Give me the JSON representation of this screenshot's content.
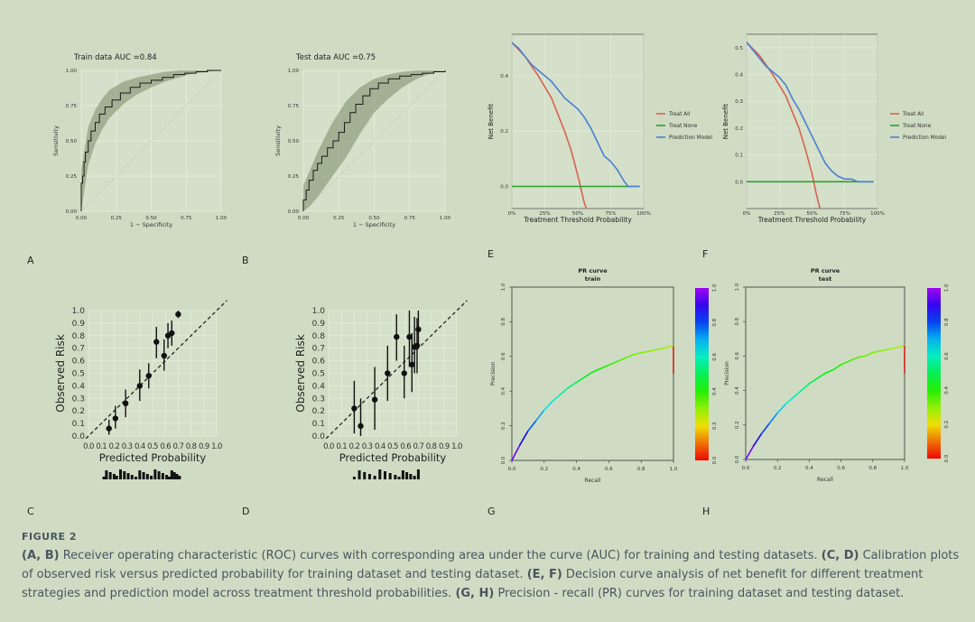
{
  "figure": {
    "background": "#cfdcc3",
    "panel_letters": [
      "A",
      "B",
      "C",
      "D",
      "E",
      "F",
      "G",
      "H"
    ]
  },
  "caption": {
    "label": "FIGURE 2",
    "segments": [
      {
        "text": "(A, B)",
        "bold": true
      },
      {
        "text": " Receiver operating characteristic (ROC) curves with corresponding area under the curve (AUC) for training and testing datasets. ",
        "bold": false
      },
      {
        "text": "(C, D)",
        "bold": true
      },
      {
        "text": " Calibration plots of observed risk versus predicted probability for training dataset and testing dataset. ",
        "bold": false
      },
      {
        "text": "(E, F)",
        "bold": true
      },
      {
        "text": " Decision curve analysis of net benefit for different treatment strategies and prediction model across treatment threshold probabilities. ",
        "bold": false
      },
      {
        "text": "(G, H)",
        "bold": true
      },
      {
        "text": " Precision - recall (PR) curves for training dataset and testing dataset.",
        "bold": false
      }
    ]
  },
  "chart_data": [
    {
      "id": "A",
      "type": "line",
      "title": "Train data  AUC =0.84",
      "xlabel": "1 − Specificity",
      "ylabel": "Sensitivity",
      "xlim": [
        0,
        1
      ],
      "ylim": [
        0,
        1
      ],
      "xticks": [
        "0.00",
        "0.25",
        "0.50",
        "0.75",
        "1.00"
      ],
      "yticks": [
        "0.00",
        "0.25",
        "0.50",
        "0.75",
        "1.00"
      ],
      "series": [
        {
          "name": "ROC",
          "color": "#1a1a1a",
          "x": [
            0,
            0,
            0.01,
            0.02,
            0.03,
            0.05,
            0.07,
            0.1,
            0.13,
            0.17,
            0.22,
            0.28,
            0.35,
            0.42,
            0.5,
            0.58,
            0.66,
            0.74,
            0.82,
            0.9,
            1.0
          ],
          "y": [
            0,
            0.2,
            0.25,
            0.35,
            0.42,
            0.5,
            0.57,
            0.63,
            0.69,
            0.74,
            0.79,
            0.84,
            0.88,
            0.91,
            0.93,
            0.95,
            0.97,
            0.98,
            0.99,
            1.0,
            1.0
          ]
        }
      ],
      "band": {
        "x": [
          0,
          0.05,
          0.1,
          0.15,
          0.2,
          0.3,
          0.4,
          0.5,
          0.6,
          0.7,
          0.8,
          0.9,
          1.0
        ],
        "lower": [
          0,
          0.33,
          0.48,
          0.58,
          0.66,
          0.76,
          0.83,
          0.88,
          0.92,
          0.95,
          0.98,
          0.99,
          1.0
        ],
        "upper": [
          0.3,
          0.6,
          0.72,
          0.8,
          0.86,
          0.92,
          0.95,
          0.97,
          0.99,
          1.0,
          1.0,
          1.0,
          1.0
        ]
      }
    },
    {
      "id": "B",
      "type": "line",
      "title": "Test data  AUC =0.75",
      "xlabel": "1 − Specificity",
      "ylabel": "Sensitivity",
      "xlim": [
        0,
        1
      ],
      "ylim": [
        0,
        1
      ],
      "xticks": [
        "0.00",
        "0.25",
        "0.50",
        "0.75",
        "1.00"
      ],
      "yticks": [
        "0.00",
        "0.25",
        "0.50",
        "0.75",
        "1.00"
      ],
      "series": [
        {
          "name": "ROC",
          "color": "#1a1a1a",
          "x": [
            0,
            0,
            0.02,
            0.04,
            0.07,
            0.1,
            0.13,
            0.17,
            0.21,
            0.25,
            0.29,
            0.33,
            0.37,
            0.42,
            0.47,
            0.53,
            0.6,
            0.68,
            0.76,
            0.84,
            0.92,
            1.0
          ],
          "y": [
            0,
            0.08,
            0.15,
            0.22,
            0.29,
            0.34,
            0.39,
            0.45,
            0.5,
            0.56,
            0.63,
            0.7,
            0.76,
            0.82,
            0.87,
            0.91,
            0.94,
            0.96,
            0.97,
            0.98,
            0.99,
            1.0
          ]
        }
      ],
      "band": {
        "x": [
          0,
          0.05,
          0.1,
          0.15,
          0.2,
          0.3,
          0.4,
          0.5,
          0.6,
          0.7,
          0.8,
          0.9,
          1.0
        ],
        "lower": [
          0,
          0.04,
          0.1,
          0.17,
          0.24,
          0.38,
          0.55,
          0.7,
          0.8,
          0.88,
          0.94,
          0.98,
          1.0
        ],
        "upper": [
          0.18,
          0.3,
          0.42,
          0.52,
          0.62,
          0.78,
          0.88,
          0.94,
          0.97,
          0.99,
          1.0,
          1.0,
          1.0
        ]
      }
    },
    {
      "id": "C",
      "type": "scatter",
      "title": "",
      "xlabel": "Predicted Probability",
      "ylabel": "Observed Risk",
      "xlim": [
        0,
        1
      ],
      "ylim": [
        0,
        1
      ],
      "xticks": [
        "0.0",
        "0.1",
        "0.2",
        "0.3",
        "0.4",
        "0.5",
        "0.6",
        "0.7",
        "0.8",
        "0.9",
        "1.0"
      ],
      "yticks": [
        "0.0",
        "0.1",
        "0.2",
        "0.3",
        "0.4",
        "0.5",
        "0.6",
        "0.7",
        "0.8",
        "0.9",
        "1.0"
      ],
      "points": {
        "x": [
          0.16,
          0.21,
          0.29,
          0.4,
          0.47,
          0.53,
          0.59,
          0.62,
          0.65,
          0.7
        ],
        "y": [
          0.06,
          0.14,
          0.26,
          0.4,
          0.48,
          0.75,
          0.64,
          0.8,
          0.82,
          0.97
        ],
        "lo": [
          0.01,
          0.06,
          0.15,
          0.28,
          0.38,
          0.62,
          0.52,
          0.7,
          0.72,
          0.94
        ],
        "hi": [
          0.13,
          0.24,
          0.37,
          0.53,
          0.58,
          0.87,
          0.77,
          0.9,
          0.92,
          1.0
        ]
      },
      "rug": [
        0.12,
        0.14,
        0.17,
        0.2,
        0.22,
        0.25,
        0.28,
        0.31,
        0.34,
        0.37,
        0.4,
        0.43,
        0.46,
        0.49,
        0.52,
        0.55,
        0.58,
        0.61,
        0.63,
        0.65,
        0.67,
        0.69,
        0.71
      ]
    },
    {
      "id": "D",
      "type": "scatter",
      "title": "",
      "xlabel": "Predicted Probability",
      "ylabel": "Observed Risk",
      "xlim": [
        0,
        1
      ],
      "ylim": [
        0,
        1
      ],
      "xticks": [
        "0.0",
        "0.1",
        "0.2",
        "0.3",
        "0.4",
        "0.5",
        "0.6",
        "0.7",
        "0.8",
        "0.9",
        "1.0"
      ],
      "yticks": [
        "0.0",
        "0.1",
        "0.2",
        "0.3",
        "0.4",
        "0.5",
        "0.6",
        "0.7",
        "0.8",
        "0.9",
        "1.0"
      ],
      "points": {
        "x": [
          0.2,
          0.25,
          0.36,
          0.46,
          0.53,
          0.59,
          0.63,
          0.65,
          0.67,
          0.69,
          0.7
        ],
        "y": [
          0.22,
          0.08,
          0.29,
          0.5,
          0.79,
          0.5,
          0.79,
          0.57,
          0.71,
          0.72,
          0.85
        ],
        "lo": [
          0.02,
          0.0,
          0.05,
          0.28,
          0.6,
          0.3,
          0.55,
          0.35,
          0.5,
          0.5,
          0.7
        ],
        "hi": [
          0.44,
          0.3,
          0.55,
          0.72,
          0.97,
          0.72,
          1.0,
          0.82,
          0.95,
          0.94,
          1.0
        ]
      },
      "rug": [
        0.2,
        0.24,
        0.28,
        0.32,
        0.36,
        0.4,
        0.44,
        0.48,
        0.52,
        0.55,
        0.58,
        0.61,
        0.64,
        0.67,
        0.7
      ]
    },
    {
      "id": "E",
      "type": "line",
      "title": "",
      "xlabel": "Treatment Threshold Probability",
      "ylabel": "Net Benefit",
      "xlim": [
        0,
        1
      ],
      "ylim": [
        -0.08,
        0.55
      ],
      "xticks": [
        "0%",
        "25%",
        "50%",
        "75%",
        "100%"
      ],
      "yticks": [
        "0.0",
        "0.2",
        "0.4"
      ],
      "legend": {
        "position": "right",
        "entries": [
          "Treat All",
          "Treat None",
          "Prediction Model"
        ]
      },
      "series": [
        {
          "name": "Treat All",
          "color": "#d9614f",
          "x": [
            0,
            0.1,
            0.2,
            0.3,
            0.4,
            0.45,
            0.5,
            0.55,
            0.58
          ],
          "y": [
            0.52,
            0.47,
            0.4,
            0.32,
            0.2,
            0.13,
            0.04,
            -0.06,
            -0.1
          ]
        },
        {
          "name": "Treat None",
          "color": "#2ca02c",
          "x": [
            0,
            0.97
          ],
          "y": [
            0,
            0
          ]
        },
        {
          "name": "Prediction Model",
          "color": "#4a7fd4",
          "x": [
            0,
            0.05,
            0.1,
            0.15,
            0.2,
            0.25,
            0.3,
            0.35,
            0.4,
            0.45,
            0.5,
            0.55,
            0.6,
            0.65,
            0.7,
            0.75,
            0.8,
            0.85,
            0.88,
            0.9,
            0.95,
            0.97
          ],
          "y": [
            0.52,
            0.5,
            0.47,
            0.44,
            0.42,
            0.4,
            0.38,
            0.35,
            0.32,
            0.3,
            0.28,
            0.25,
            0.21,
            0.16,
            0.11,
            0.09,
            0.06,
            0.02,
            0.0,
            0.0,
            0.0,
            0.0
          ]
        }
      ]
    },
    {
      "id": "F",
      "type": "line",
      "title": "",
      "xlabel": "Treatment Threshold Probability",
      "ylabel": "Net Benefit",
      "xlim": [
        0,
        1
      ],
      "ylim": [
        -0.1,
        0.55
      ],
      "xticks": [
        "0%",
        "25%",
        "50%",
        "75%",
        "100%"
      ],
      "yticks": [
        "0.0",
        "0.1",
        "0.2",
        "0.3",
        "0.4",
        "0.5"
      ],
      "legend": {
        "position": "right",
        "entries": [
          "Treat All",
          "Treat None",
          "Prediction Model"
        ]
      },
      "series": [
        {
          "name": "Treat All",
          "color": "#d9614f",
          "x": [
            0,
            0.1,
            0.2,
            0.3,
            0.4,
            0.45,
            0.5,
            0.53,
            0.56
          ],
          "y": [
            0.52,
            0.47,
            0.4,
            0.32,
            0.2,
            0.12,
            0.03,
            -0.04,
            -0.1
          ]
        },
        {
          "name": "Treat None",
          "color": "#2ca02c",
          "x": [
            0,
            0.97
          ],
          "y": [
            0,
            0
          ]
        },
        {
          "name": "Prediction Model",
          "color": "#4a7fd4",
          "x": [
            0,
            0.05,
            0.1,
            0.15,
            0.2,
            0.25,
            0.3,
            0.35,
            0.4,
            0.45,
            0.5,
            0.55,
            0.6,
            0.65,
            0.7,
            0.75,
            0.8,
            0.85,
            0.9,
            0.97
          ],
          "y": [
            0.52,
            0.49,
            0.46,
            0.43,
            0.41,
            0.39,
            0.36,
            0.31,
            0.27,
            0.22,
            0.17,
            0.12,
            0.07,
            0.04,
            0.02,
            0.01,
            0.01,
            0.0,
            0.0,
            0.0
          ]
        }
      ]
    },
    {
      "id": "G",
      "type": "line",
      "title": "PR curve",
      "subtitle": "train",
      "xlabel": "Recall",
      "ylabel": "Precision",
      "xlim": [
        0,
        1
      ],
      "ylim": [
        0,
        1
      ],
      "xticks": [
        "0.0",
        "0.2",
        "0.4",
        "0.6",
        "0.8",
        "1.0"
      ],
      "yticks": [
        "0.0",
        "0.2",
        "0.4",
        "0.6",
        "0.8",
        "1.0"
      ],
      "colorbar": {
        "ticks": [
          "0.0",
          "0.2",
          "0.4",
          "0.6",
          "0.8",
          "1.0"
        ]
      },
      "series": [
        {
          "name": "PR",
          "x": [
            0,
            0.05,
            0.1,
            0.15,
            0.2,
            0.25,
            0.3,
            0.35,
            0.4,
            0.45,
            0.5,
            0.55,
            0.6,
            0.65,
            0.7,
            0.75,
            0.8,
            0.85,
            0.9,
            0.95,
            1.0
          ],
          "y": [
            0,
            0.09,
            0.17,
            0.23,
            0.29,
            0.34,
            0.38,
            0.42,
            0.45,
            0.48,
            0.51,
            0.53,
            0.55,
            0.57,
            0.59,
            0.61,
            0.62,
            0.63,
            0.64,
            0.65,
            0.66
          ]
        }
      ],
      "drop": {
        "x": 1.0,
        "from": 0.66,
        "to": 0.5
      }
    },
    {
      "id": "H",
      "type": "line",
      "title": "PR curve",
      "subtitle": "test",
      "xlabel": "Recall",
      "ylabel": "Precision",
      "xlim": [
        0,
        1
      ],
      "ylim": [
        0,
        1
      ],
      "xticks": [
        "0.0",
        "0.2",
        "0.4",
        "0.6",
        "0.8",
        "1.0"
      ],
      "yticks": [
        "0.0",
        "0.2",
        "0.4",
        "0.6",
        "0.8",
        "1.0"
      ],
      "colorbar": {
        "ticks": [
          "0.0",
          "0.2",
          "0.4",
          "0.6",
          "0.8",
          "1.0"
        ]
      },
      "series": [
        {
          "name": "PR",
          "x": [
            0,
            0.05,
            0.1,
            0.15,
            0.2,
            0.25,
            0.3,
            0.35,
            0.4,
            0.45,
            0.5,
            0.55,
            0.6,
            0.65,
            0.7,
            0.75,
            0.8,
            0.85,
            0.9,
            0.95,
            1.0
          ],
          "y": [
            0,
            0.08,
            0.15,
            0.21,
            0.27,
            0.32,
            0.36,
            0.4,
            0.44,
            0.47,
            0.5,
            0.52,
            0.55,
            0.57,
            0.59,
            0.6,
            0.62,
            0.63,
            0.64,
            0.65,
            0.66
          ]
        }
      ],
      "drop": {
        "x": 1.0,
        "from": 0.66,
        "to": 0.5
      }
    }
  ]
}
